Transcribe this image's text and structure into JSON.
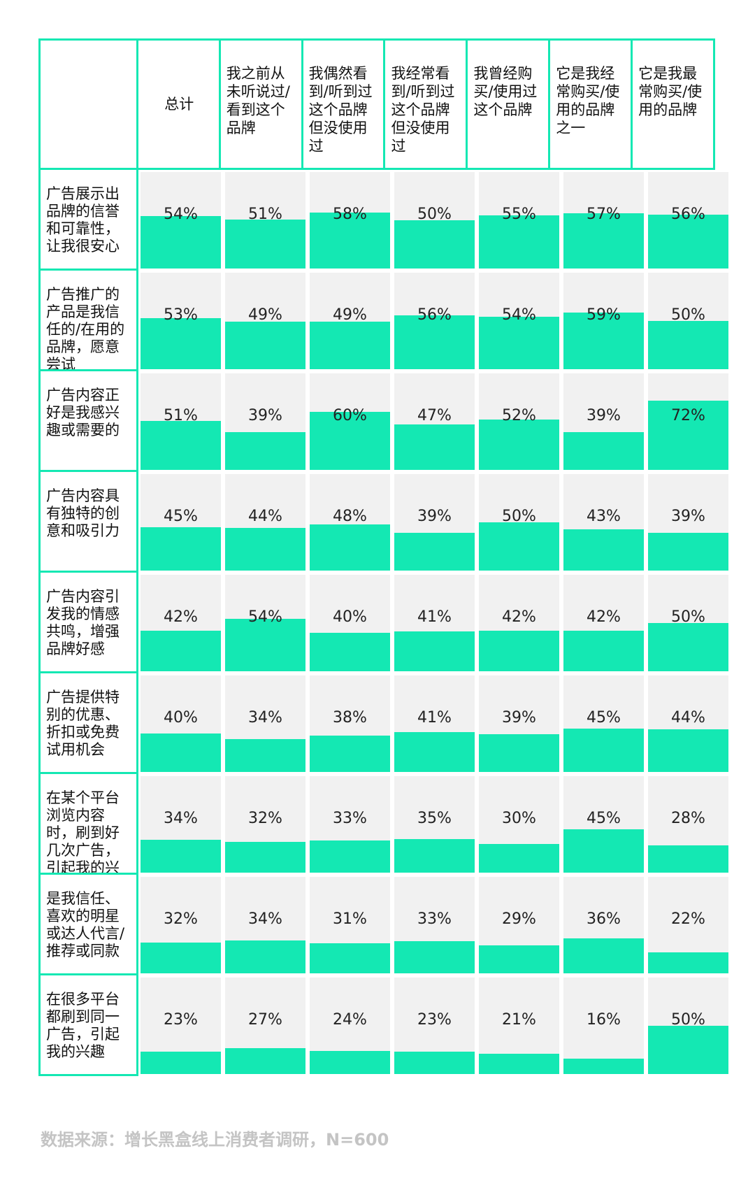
{
  "header": {
    "columns": [
      "总计",
      "我之前从未听说过/看到这个品牌",
      "我偶然看到/听到过这个品牌但没使用过",
      "我经常看到/听到过这个品牌但没使用过",
      "我曾经购买/使用过这个品牌",
      "它是我经常购买/使用的品牌之一",
      "它是我最常购买/使用的品牌"
    ]
  },
  "chart_data": {
    "type": "table",
    "columns": [
      "总计",
      "我之前从未听说过/看到这个品牌",
      "我偶然看到/听到过这个品牌但没使用过",
      "我经常看到/听到过这个品牌但没使用过",
      "我曾经购买/使用过这个品牌",
      "它是我经常购买/使用的品牌之一",
      "它是我最常购买/使用的品牌"
    ],
    "rows": [
      {
        "label": "广告展示出品牌的信誉和可靠性，让我很安心",
        "values": [
          54,
          51,
          58,
          50,
          55,
          57,
          56
        ]
      },
      {
        "label": "广告推广的产品是我信任的/在用的品牌，愿意尝试",
        "values": [
          53,
          49,
          49,
          56,
          54,
          59,
          50
        ]
      },
      {
        "label": "广告内容正好是我感兴趣或需要的",
        "values": [
          51,
          39,
          60,
          47,
          52,
          39,
          72
        ]
      },
      {
        "label": "广告内容具有独特的创意和吸引力",
        "values": [
          45,
          44,
          48,
          39,
          50,
          43,
          39
        ]
      },
      {
        "label": "广告内容引发我的情感共鸣，增强品牌好感",
        "values": [
          42,
          54,
          40,
          41,
          42,
          42,
          50
        ]
      },
      {
        "label": "广告提供特别的优惠、折扣或免费试用机会",
        "values": [
          40,
          34,
          38,
          41,
          39,
          45,
          44
        ]
      },
      {
        "label": "在某个平台浏览内容时，刷到好几次广告，引起我的兴趣",
        "values": [
          34,
          32,
          33,
          35,
          30,
          45,
          28
        ]
      },
      {
        "label": "是我信任、喜欢的明星或达人代言/推荐或同款",
        "values": [
          32,
          34,
          31,
          33,
          29,
          36,
          22
        ]
      },
      {
        "label": "在很多平台都刷到同一广告，引起我的兴趣",
        "values": [
          23,
          27,
          24,
          23,
          21,
          16,
          50
        ]
      }
    ],
    "unit": "%"
  },
  "footer": {
    "source": "数据来源：增长黑盒线上消费者调研，N=600"
  },
  "colors": {
    "accent": "#14e8b3",
    "cell_bg": "#f1f1f1"
  }
}
